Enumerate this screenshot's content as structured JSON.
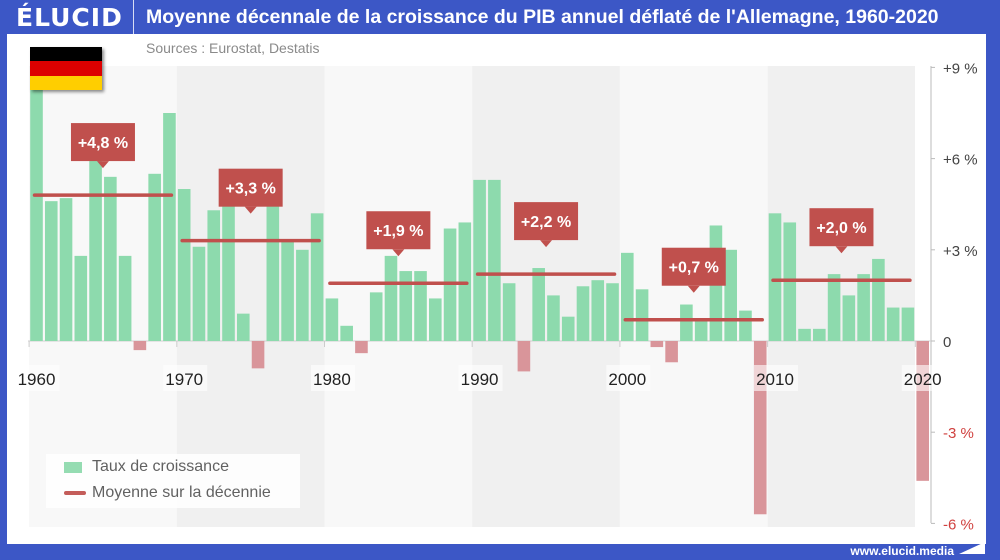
{
  "header": {
    "logo": "ÉLUCID",
    "title": "Moyenne décennale de la croissance du PIB annuel déflaté de l'Allemagne, 1960-2020",
    "sources": "Sources : Eurostat, Destatis"
  },
  "footer": {
    "url": "www.elucid.media"
  },
  "legend": {
    "bars": "Taux de croissance",
    "line": "Moyenne sur la décennie"
  },
  "colors": {
    "brand": "#3c57c6",
    "positive_bar": "#8ddaad",
    "negative_bar": "#d9959a",
    "average_line": "#c0504d",
    "negative_tick": "#d0413f"
  },
  "chart_data": {
    "type": "bar",
    "title": "Moyenne décennale de la croissance du PIB annuel déflaté de l'Allemagne, 1960-2020",
    "xlabel": "",
    "ylabel": "",
    "ylim": [
      -6,
      9
    ],
    "y_ticks": [
      {
        "value": 9,
        "label": "+9 %"
      },
      {
        "value": 6,
        "label": "+6 %"
      },
      {
        "value": 3,
        "label": "+3 %"
      },
      {
        "value": 0,
        "label": "0"
      },
      {
        "value": -3,
        "label": "-3 %"
      },
      {
        "value": -6,
        "label": "-6 %"
      }
    ],
    "x_ticks": [
      {
        "year": 1960,
        "label": "1960"
      },
      {
        "year": 1970,
        "label": "1970"
      },
      {
        "year": 1980,
        "label": "1980"
      },
      {
        "year": 1990,
        "label": "1990"
      },
      {
        "year": 2000,
        "label": "2000"
      },
      {
        "year": 2010,
        "label": "2010"
      },
      {
        "year": 2020,
        "label": "2020"
      }
    ],
    "years": [
      1960,
      1961,
      1962,
      1963,
      1964,
      1965,
      1966,
      1967,
      1968,
      1969,
      1970,
      1971,
      1972,
      1973,
      1974,
      1975,
      1976,
      1977,
      1978,
      1979,
      1980,
      1981,
      1982,
      1983,
      1984,
      1985,
      1986,
      1987,
      1988,
      1989,
      1990,
      1991,
      1992,
      1993,
      1994,
      1995,
      1996,
      1997,
      1998,
      1999,
      2000,
      2001,
      2002,
      2003,
      2004,
      2005,
      2006,
      2007,
      2008,
      2009,
      2010,
      2011,
      2012,
      2013,
      2014,
      2015,
      2016,
      2017,
      2018,
      2019,
      2020
    ],
    "series": [
      {
        "name": "Taux de croissance",
        "values": [
          8.6,
          4.6,
          4.7,
          2.8,
          6.7,
          5.4,
          2.8,
          -0.3,
          5.5,
          7.5,
          5.0,
          3.1,
          4.3,
          4.8,
          0.9,
          -0.9,
          4.9,
          3.3,
          3.0,
          4.2,
          1.4,
          0.5,
          -0.4,
          1.6,
          2.8,
          2.3,
          2.3,
          1.4,
          3.7,
          3.9,
          5.3,
          5.3,
          1.9,
          -1.0,
          2.4,
          1.5,
          0.8,
          1.8,
          2.0,
          1.9,
          2.9,
          1.7,
          -0.2,
          -0.7,
          1.2,
          0.7,
          3.8,
          3.0,
          1.0,
          -5.7,
          4.2,
          3.9,
          0.4,
          0.4,
          2.2,
          1.5,
          2.2,
          2.7,
          1.1,
          1.1,
          -4.6
        ]
      }
    ],
    "decade_averages": [
      {
        "start": 1960,
        "end": 1969,
        "value": 4.8,
        "label": "+4,8 %"
      },
      {
        "start": 1970,
        "end": 1979,
        "value": 3.3,
        "label": "+3,3 %"
      },
      {
        "start": 1980,
        "end": 1989,
        "value": 1.9,
        "label": "+1,9 %"
      },
      {
        "start": 1990,
        "end": 1999,
        "value": 2.2,
        "label": "+2,2 %"
      },
      {
        "start": 2000,
        "end": 2009,
        "value": 0.7,
        "label": "+0,7 %"
      },
      {
        "start": 2010,
        "end": 2019,
        "value": 2.0,
        "label": "+2,0 %"
      }
    ],
    "grid": false,
    "legend_position": "bottom-left"
  }
}
